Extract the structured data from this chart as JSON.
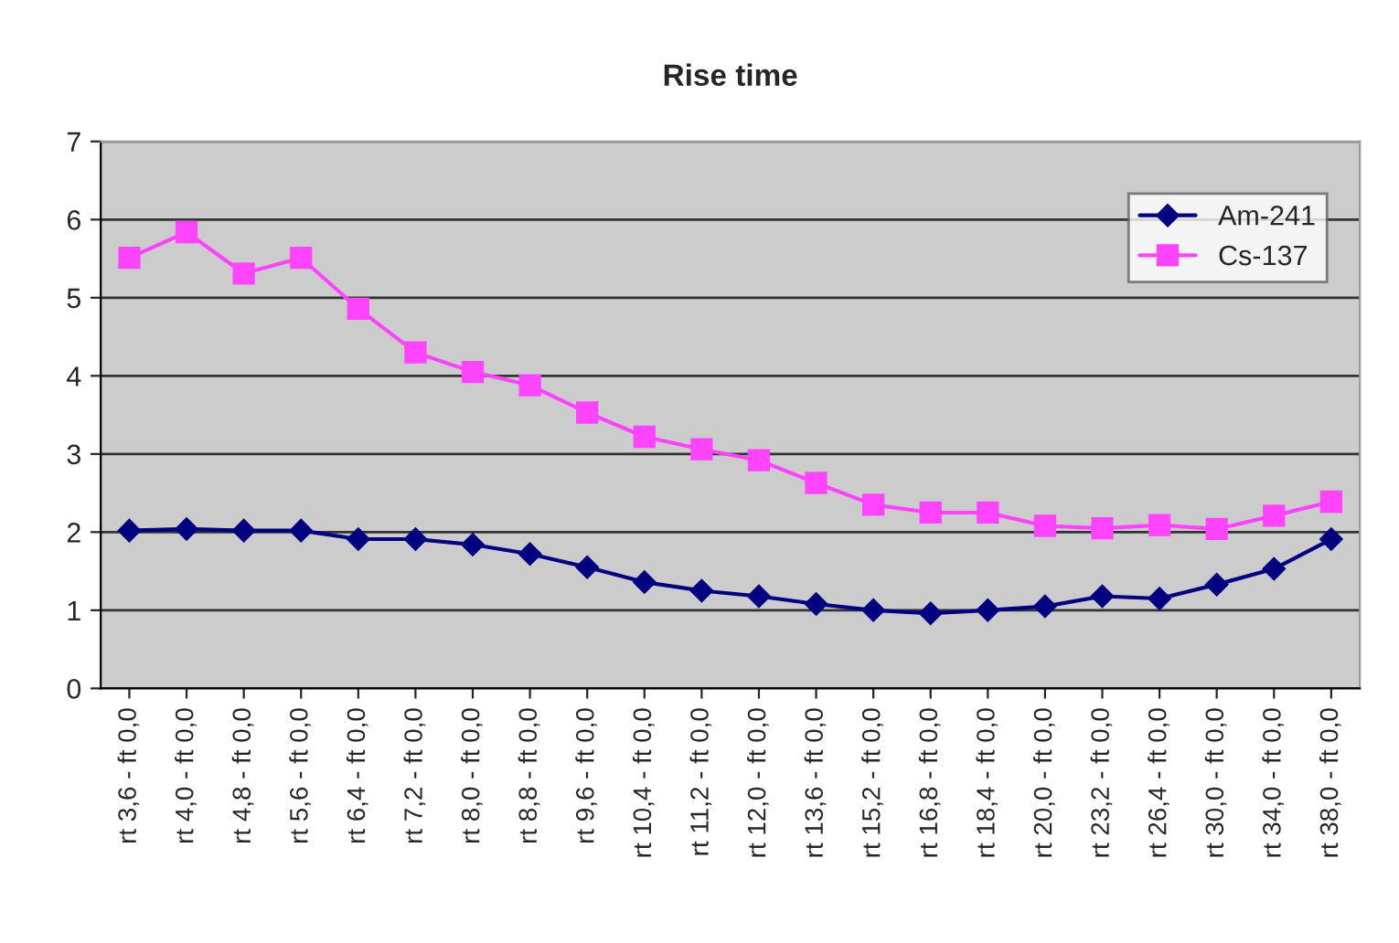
{
  "chart_data": {
    "type": "line",
    "title": "Rise time",
    "categories": [
      "rt 3,6 - ft 0,0",
      "rt 4,0 - ft 0,0",
      "rt 4,8 - ft 0,0",
      "rt 5,6 - ft 0,0",
      "rt 6,4 - ft 0,0",
      "rt 7,2 - ft 0,0",
      "rt 8,0 - ft 0,0",
      "rt 8,8 - ft 0,0",
      "rt 9,6 - ft 0,0",
      "rt 10,4 - ft 0,0",
      "rt 11,2 - ft 0,0",
      "rt 12,0 - ft 0,0",
      "rt 13,6 - ft 0,0",
      "rt 15,2 - ft 0,0",
      "rt 16,8 - ft 0,0",
      "rt 18,4 - ft 0,0",
      "rt 20,0 - ft 0,0",
      "rt 23,2 - ft 0,0",
      "rt 26,4 - ft 0,0",
      "rt 30,0 - ft 0,0",
      "rt 34,0 - ft 0,0",
      "rt 38,0 - ft 0,0"
    ],
    "series": [
      {
        "name": "Am-241",
        "color": "#000080",
        "marker": "diamond",
        "values": [
          2.02,
          2.04,
          2.02,
          2.02,
          1.91,
          1.91,
          1.84,
          1.72,
          1.55,
          1.36,
          1.25,
          1.18,
          1.08,
          1.0,
          0.96,
          1.0,
          1.05,
          1.18,
          1.15,
          1.33,
          1.53,
          1.91
        ]
      },
      {
        "name": "Cs-137",
        "color": "#ff44ff",
        "marker": "square",
        "values": [
          5.51,
          5.84,
          5.31,
          5.51,
          4.86,
          4.3,
          4.05,
          3.88,
          3.53,
          3.22,
          3.06,
          2.92,
          2.63,
          2.35,
          2.25,
          2.25,
          2.08,
          2.05,
          2.09,
          2.04,
          2.21,
          2.39
        ]
      }
    ],
    "ylim": [
      0,
      7
    ],
    "yticks": [
      0,
      1,
      2,
      3,
      4,
      5,
      6,
      7
    ],
    "grid": "y",
    "legend": "top right"
  }
}
